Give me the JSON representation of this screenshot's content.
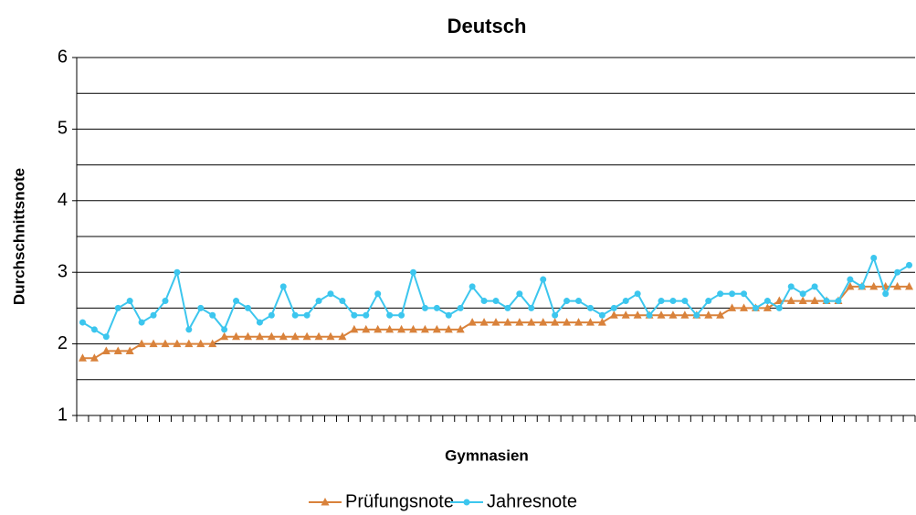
{
  "chart_data": {
    "type": "line",
    "title": "Deutsch",
    "x_label": "Gymnasien",
    "y_label": "Durchschnittsnote",
    "categories": [
      null,
      null,
      null,
      null,
      null,
      null,
      null,
      null,
      null,
      null,
      null,
      null,
      null,
      null,
      null,
      null,
      null,
      null,
      null,
      null,
      null,
      null,
      null,
      null,
      null,
      null,
      null,
      null,
      null,
      null,
      null,
      null,
      null,
      null,
      null,
      null,
      null,
      null,
      null,
      null,
      null,
      null,
      null,
      null,
      null,
      null,
      null,
      null,
      null,
      null,
      null,
      null,
      null,
      null,
      null,
      null,
      null,
      null,
      null,
      null,
      null,
      null,
      null,
      null,
      null,
      null,
      null,
      null,
      null,
      null,
      null
    ],
    "series": [
      {
        "name": "Prüfungsnote",
        "color": "#d9823b",
        "marker": "triangle",
        "values": [
          1.8,
          1.8,
          1.9,
          1.9,
          1.9,
          2.0,
          2.0,
          2.0,
          2.0,
          2.0,
          2.0,
          2.0,
          2.1,
          2.1,
          2.1,
          2.1,
          2.1,
          2.1,
          2.1,
          2.1,
          2.1,
          2.1,
          2.1,
          2.2,
          2.2,
          2.2,
          2.2,
          2.2,
          2.2,
          2.2,
          2.2,
          2.2,
          2.2,
          2.3,
          2.3,
          2.3,
          2.3,
          2.3,
          2.3,
          2.3,
          2.3,
          2.3,
          2.3,
          2.3,
          2.3,
          2.4,
          2.4,
          2.4,
          2.4,
          2.4,
          2.4,
          2.4,
          2.4,
          2.4,
          2.4,
          2.5,
          2.5,
          2.5,
          2.5,
          2.6,
          2.6,
          2.6,
          2.6,
          2.6,
          2.6,
          2.8,
          2.8,
          2.8,
          2.8,
          2.8,
          2.8
        ]
      },
      {
        "name": "Jahresnote",
        "color": "#3cc6ee",
        "marker": "circle",
        "values": [
          2.3,
          2.2,
          2.1,
          2.5,
          2.6,
          2.3,
          2.4,
          2.6,
          3.0,
          2.2,
          2.5,
          2.4,
          2.2,
          2.6,
          2.5,
          2.3,
          2.4,
          2.8,
          2.4,
          2.4,
          2.6,
          2.7,
          2.6,
          2.4,
          2.4,
          2.7,
          2.4,
          2.4,
          3.0,
          2.5,
          2.5,
          2.4,
          2.5,
          2.8,
          2.6,
          2.6,
          2.5,
          2.7,
          2.5,
          2.9,
          2.4,
          2.6,
          2.6,
          2.5,
          2.4,
          2.5,
          2.6,
          2.7,
          2.4,
          2.6,
          2.6,
          2.6,
          2.4,
          2.6,
          2.7,
          2.7,
          2.7,
          2.5,
          2.6,
          2.5,
          2.8,
          2.7,
          2.8,
          2.6,
          2.6,
          2.9,
          2.8,
          3.2,
          2.7,
          3.0,
          3.1
        ]
      }
    ],
    "ylim": [
      1,
      6
    ],
    "yticks": [
      1,
      2,
      3,
      4,
      5,
      6
    ],
    "minor_gridlines": [
      1.5,
      2.5,
      3.5,
      4.5,
      5.5
    ],
    "grid": true,
    "legend": "bottom"
  }
}
